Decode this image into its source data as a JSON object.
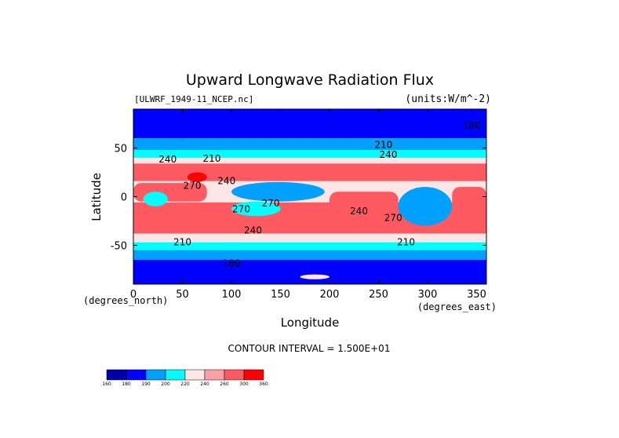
{
  "chart_data": {
    "type": "heatmap",
    "title": "Upward Longwave Radiation Flux",
    "file_label": "[ULWRF_1949-11_NCEP.nc]",
    "units_label": "(units:W/m^-2)",
    "xlabel": "Longitude",
    "ylabel": "Latitude",
    "x_unit_label": "(degrees_east)",
    "y_unit_label": "(degrees_north)",
    "xlim": [
      0,
      360
    ],
    "ylim": [
      -90,
      90
    ],
    "x_ticks": [
      0,
      50,
      100,
      150,
      200,
      250,
      300,
      350
    ],
    "y_ticks": [
      -50,
      0,
      50
    ],
    "contour_interval_text": "CONTOUR INTERVAL = 1.500E+01",
    "contour_labels": [
      {
        "text": "240",
        "lon": 35,
        "lat": 35
      },
      {
        "text": "210",
        "lon": 80,
        "lat": 36
      },
      {
        "text": "240",
        "lon": 260,
        "lat": 40
      },
      {
        "text": "210",
        "lon": 255,
        "lat": 50
      },
      {
        "text": "180",
        "lon": 345,
        "lat": 70
      },
      {
        "text": "270",
        "lon": 60,
        "lat": 8
      },
      {
        "text": "240",
        "lon": 95,
        "lat": 13
      },
      {
        "text": "270",
        "lon": 110,
        "lat": -16
      },
      {
        "text": "270",
        "lon": 140,
        "lat": -10
      },
      {
        "text": "240",
        "lon": 230,
        "lat": -18
      },
      {
        "text": "270",
        "lon": 265,
        "lat": -25
      },
      {
        "text": "240",
        "lon": 122,
        "lat": -38
      },
      {
        "text": "210",
        "lon": 50,
        "lat": -50
      },
      {
        "text": "210",
        "lon": 278,
        "lat": -50
      },
      {
        "text": "180",
        "lon": 100,
        "lat": -72
      }
    ],
    "colorbar": {
      "ticks": [
        "160",
        "180",
        "190",
        "200",
        "220",
        "240",
        "260",
        "300",
        "360"
      ],
      "colors": [
        "#0000aa",
        "#0000ff",
        "#00a0ff",
        "#00ffff",
        "#fde6e6",
        "#ff9fa8",
        "#ff5a62",
        "#ff0000"
      ]
    },
    "fields": {
      "background": "#fde6e6",
      "levels": [
        {
          "color": "#0000ff",
          "bands": [
            {
              "lat_max": 90,
              "lat_min": 60
            },
            {
              "lat_max": -65,
              "lat_min": -90
            }
          ]
        },
        {
          "color": "#00a0ff",
          "bands": [
            {
              "lat_max": 60,
              "lat_min": 48
            },
            {
              "lat_max": -55,
              "lat_min": -65
            }
          ]
        },
        {
          "color": "#00ffff",
          "bands": [
            {
              "lat_max": 48,
              "lat_min": 40
            },
            {
              "lat_max": -47,
              "lat_min": -55
            }
          ]
        },
        {
          "color": "#ff5a62",
          "bands": [
            {
              "lat_max": 34,
              "lat_min": 16
            },
            {
              "lat_max": -6,
              "lat_min": -38
            }
          ]
        },
        {
          "color": "#ff5a62",
          "bands": [
            {
              "lat_max": 14,
              "lat_min": -5,
              "lon_min": 0,
              "lon_max": 75
            },
            {
              "lat_max": 5,
              "lat_min": -15,
              "lon_min": 200,
              "lon_max": 270
            },
            {
              "lat_max": 10,
              "lat_min": -15,
              "lon_min": 325,
              "lon_max": 360
            }
          ]
        }
      ],
      "patches": [
        {
          "color": "#00a0ff",
          "lon_min": 100,
          "lon_max": 195,
          "lat_min": -5,
          "lat_max": 15
        },
        {
          "color": "#00ffff",
          "lon_min": 100,
          "lon_max": 150,
          "lat_min": -20,
          "lat_max": -5
        },
        {
          "color": "#00a0ff",
          "lon_min": 270,
          "lon_max": 325,
          "lat_min": -30,
          "lat_max": 10
        },
        {
          "color": "#00ffff",
          "lon_min": 10,
          "lon_max": 35,
          "lat_min": -10,
          "lat_max": 5
        },
        {
          "color": "#ff0000",
          "lon_min": 55,
          "lon_max": 75,
          "lat_min": 15,
          "lat_max": 25
        },
        {
          "color": "#0000ff",
          "lon_min": 20,
          "lon_max": 80,
          "lat_min": 60,
          "lat_max": 75
        },
        {
          "color": "#0000ff",
          "lon_min": 170,
          "lon_max": 250,
          "lat_min": -90,
          "lat_max": -70
        },
        {
          "color": "#fde6e6",
          "lon_min": 170,
          "lon_max": 200,
          "lat_min": -85,
          "lat_max": -80
        }
      ]
    }
  }
}
